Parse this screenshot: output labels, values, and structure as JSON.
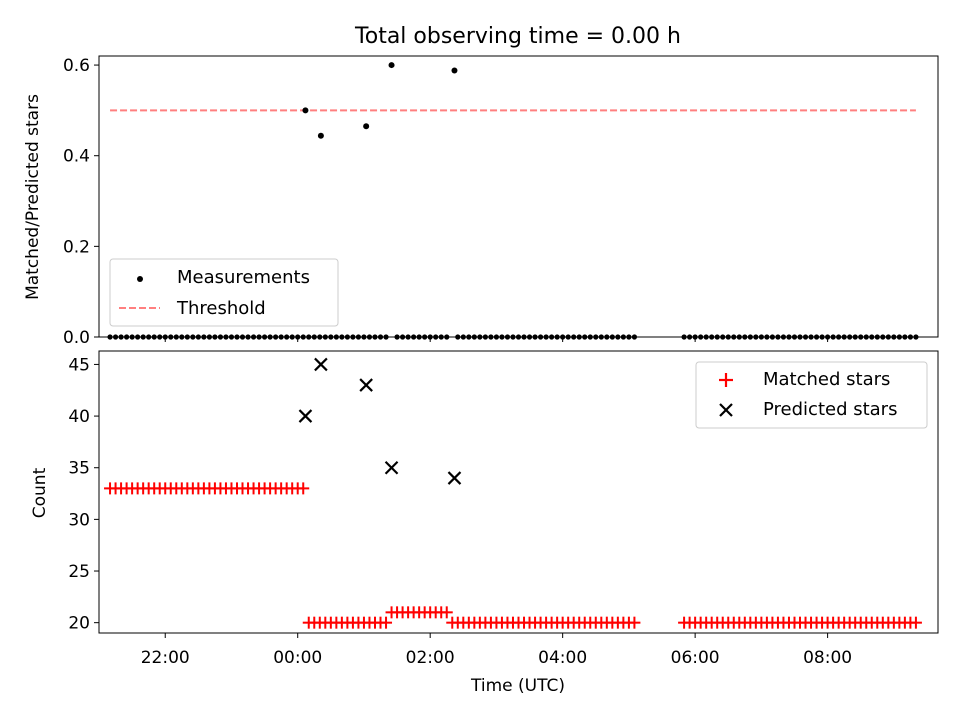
{
  "chart_data": [
    {
      "type": "scatter",
      "title": "Total observing time = 0.00 h",
      "xlabel": "",
      "ylabel": "Matched/Predicted stars",
      "xlim": [
        "21:00",
        "09:40"
      ],
      "ylim": [
        0,
        0.62
      ],
      "yticks": [
        0.0,
        0.2,
        0.4,
        0.6
      ],
      "ytick_labels": [
        "0.0",
        "0.2",
        "0.4",
        "0.6"
      ],
      "grid": false,
      "legend_location": "lower-left",
      "legend_labels": [
        "Measurements",
        "Threshold"
      ],
      "series": [
        {
          "name": "Measurements",
          "marker": "dot",
          "color": "#000000",
          "points": [
            {
              "x": "00:07",
              "y": 0.5
            },
            {
              "x": "00:21",
              "y": 0.444
            },
            {
              "x": "01:02",
              "y": 0.465
            },
            {
              "x": "01:25",
              "y": 0.6
            },
            {
              "x": "02:22",
              "y": 0.588
            }
          ],
          "zero_segments": [
            {
              "start": "21:10",
              "end": "00:05",
              "step_min": 5
            },
            {
              "start": "00:10",
              "end": "01:00",
              "step_min": 5
            },
            {
              "start": "01:05",
              "end": "01:20",
              "step_min": 5
            },
            {
              "start": "01:30",
              "end": "02:15",
              "step_min": 5
            },
            {
              "start": "02:25",
              "end": "05:05",
              "step_min": 5
            },
            {
              "start": "05:50",
              "end": "09:20",
              "step_min": 5
            }
          ]
        },
        {
          "name": "Threshold",
          "style": "dashed",
          "color": "#ff7f7f",
          "points": [
            {
              "x": "21:10",
              "y": 0.5
            },
            {
              "x": "09:20",
              "y": 0.5
            }
          ]
        }
      ]
    },
    {
      "type": "scatter",
      "xlabel": "Time (UTC)",
      "ylabel": "Count",
      "xlim": [
        "21:00",
        "09:40"
      ],
      "ylim": [
        19,
        46.3
      ],
      "xticks": [
        "22:00",
        "00:00",
        "02:00",
        "04:00",
        "06:00",
        "08:00"
      ],
      "yticks": [
        20,
        25,
        30,
        35,
        40,
        45
      ],
      "ytick_labels": [
        "20",
        "25",
        "30",
        "35",
        "40",
        "45"
      ],
      "grid": false,
      "legend_location": "upper-right",
      "legend_labels": [
        "Matched stars",
        "Predicted stars"
      ],
      "series": [
        {
          "name": "Matched stars",
          "marker": "plus",
          "color": "#ff0000",
          "segments": [
            {
              "start": "21:10",
              "end": "00:05",
              "step_min": 5,
              "y": 33
            },
            {
              "start": "00:10",
              "end": "01:20",
              "step_min": 5,
              "y": 20
            },
            {
              "start": "01:25",
              "end": "02:15",
              "step_min": 5,
              "y": 21
            },
            {
              "start": "02:20",
              "end": "05:05",
              "step_min": 5,
              "y": 20
            },
            {
              "start": "05:50",
              "end": "09:20",
              "step_min": 5,
              "y": 20
            }
          ]
        },
        {
          "name": "Predicted stars",
          "marker": "x",
          "color": "#000000",
          "points": [
            {
              "x": "00:07",
              "y": 40
            },
            {
              "x": "00:21",
              "y": 45
            },
            {
              "x": "01:02",
              "y": 43
            },
            {
              "x": "01:25",
              "y": 35
            },
            {
              "x": "02:22",
              "y": 34
            }
          ]
        }
      ]
    }
  ]
}
